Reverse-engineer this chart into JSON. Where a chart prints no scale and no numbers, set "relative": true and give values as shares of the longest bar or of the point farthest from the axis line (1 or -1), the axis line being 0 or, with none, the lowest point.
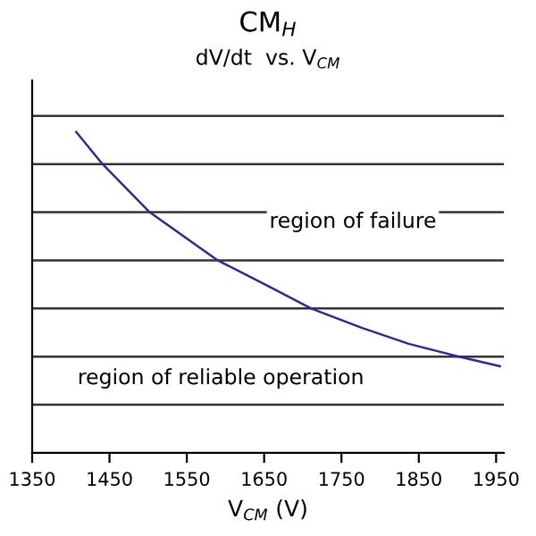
{
  "chart_data": {
    "type": "line",
    "title": "CM$_{H}$",
    "subtitle": "dV/dt  vs. V$_{CM}$",
    "xlabel": "V$_{CM}$ (V)",
    "x": [
      1407,
      1441,
      1502,
      1590,
      1655,
      1711,
      1776,
      1837,
      1902,
      1955
    ],
    "relative": true,
    "series": [
      {
        "color": "#2a2a9c",
        "values": [
          1,
          0.9,
          0.75,
          0.6,
          0.52,
          0.45,
          0.39,
          0.34,
          0.3,
          0.27
        ]
      }
    ],
    "xlim": [
      1350,
      1960
    ],
    "xticks": [
      1350,
      1450,
      1550,
      1650,
      1750,
      1850,
      1950
    ],
    "tick_labels": "x",
    "grid": "y",
    "marker": "none",
    "line_style": "solid",
    "annotations": [
      "region of failure",
      "region of reliable operation"
    ]
  }
}
